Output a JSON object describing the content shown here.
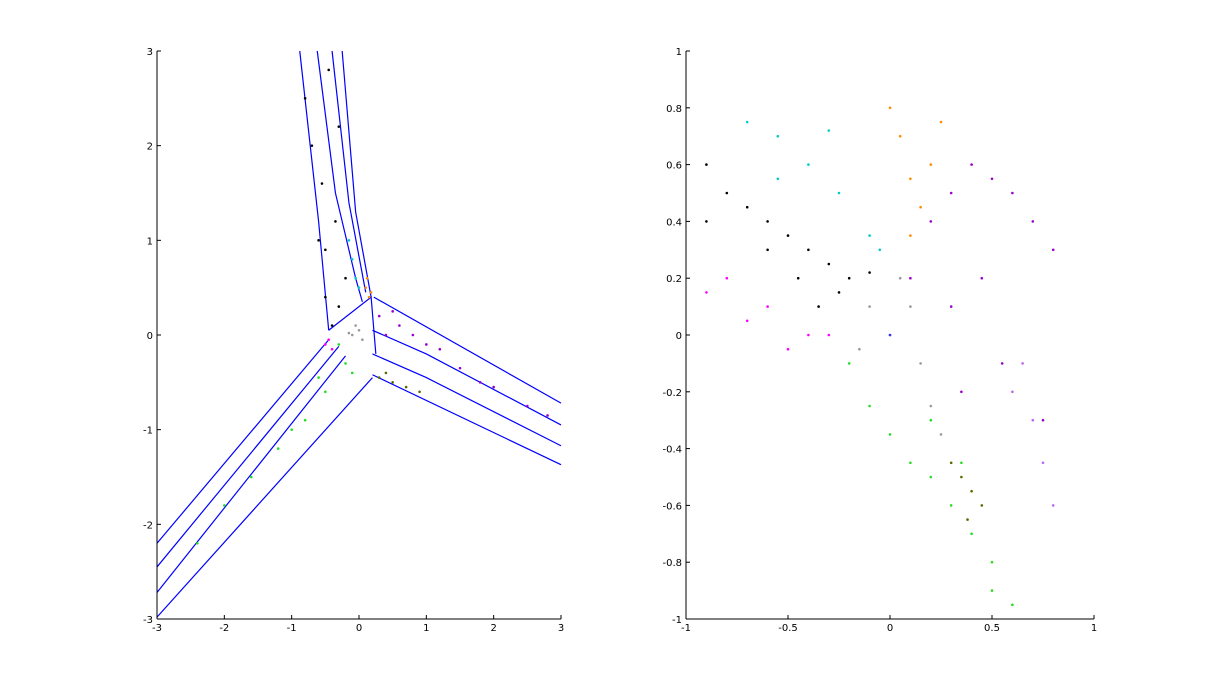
{
  "chart_data": [
    {
      "type": "scatter",
      "xlim": [
        -3,
        3
      ],
      "ylim": [
        -3,
        3
      ],
      "xticks": [
        -3,
        -2,
        -1,
        0,
        1,
        2,
        3
      ],
      "yticks": [
        -3,
        -2,
        -1,
        0,
        1,
        2,
        3
      ],
      "series": [
        {
          "style": "line",
          "color": "#0000ff",
          "x": [
            -0.88,
            -0.6,
            -0.45
          ],
          "y": [
            3,
            1.2,
            0.05
          ]
        },
        {
          "style": "line",
          "color": "#0000ff",
          "x": [
            -0.62,
            -0.35,
            -0.05,
            0.05
          ],
          "y": [
            3,
            1.5,
            0.6,
            0.35
          ]
        },
        {
          "style": "line",
          "color": "#0000ff",
          "x": [
            -0.4,
            -0.15,
            0.1
          ],
          "y": [
            3,
            1.4,
            0.45
          ]
        },
        {
          "style": "line",
          "color": "#0000ff",
          "x": [
            -0.25,
            -0.05,
            0.18
          ],
          "y": [
            3,
            1.3,
            0.4
          ]
        },
        {
          "style": "line",
          "color": "#0000ff",
          "x": [
            -0.45,
            0.18,
            0.25
          ],
          "y": [
            0.05,
            0.4,
            -0.2
          ]
        },
        {
          "style": "line",
          "color": "#0000ff",
          "x": [
            0.22,
            3
          ],
          "y": [
            0.4,
            -0.72
          ]
        },
        {
          "style": "line",
          "color": "#0000ff",
          "x": [
            0.2,
            1.0,
            3
          ],
          "y": [
            0.05,
            -0.2,
            -0.95
          ]
        },
        {
          "style": "line",
          "color": "#0000ff",
          "x": [
            0.2,
            1.0,
            3
          ],
          "y": [
            -0.2,
            -0.45,
            -1.17
          ]
        },
        {
          "style": "line",
          "color": "#0000ff",
          "x": [
            0.2,
            3
          ],
          "y": [
            -0.42,
            -1.37
          ]
        },
        {
          "style": "line",
          "color": "#0000ff",
          "x": [
            -0.45,
            -3
          ],
          "y": [
            -0.05,
            -2.2
          ]
        },
        {
          "style": "line",
          "color": "#0000ff",
          "x": [
            -0.3,
            -3
          ],
          "y": [
            -0.12,
            -2.45
          ]
        },
        {
          "style": "line",
          "color": "#0000ff",
          "x": [
            -0.2,
            -3
          ],
          "y": [
            -0.22,
            -2.72
          ]
        },
        {
          "style": "line",
          "color": "#0000ff",
          "x": [
            0.2,
            -3
          ],
          "y": [
            -0.45,
            -2.98
          ]
        },
        {
          "style": "dots",
          "color": "#000000",
          "x": [
            -0.4,
            -0.3,
            -0.2,
            -0.5,
            -0.35,
            -0.55,
            -0.7,
            -0.8,
            -0.45,
            -0.3,
            -0.6,
            -0.5
          ],
          "y": [
            0.1,
            0.3,
            0.6,
            0.9,
            1.2,
            1.6,
            2.0,
            2.5,
            2.8,
            2.2,
            1.0,
            0.4
          ]
        },
        {
          "style": "dots",
          "color": "#00cccc",
          "x": [
            -0.1,
            -0.05,
            0.0,
            -0.15
          ],
          "y": [
            0.8,
            0.6,
            0.5,
            1.0
          ]
        },
        {
          "style": "dots",
          "color": "#ff8c00",
          "x": [
            0.1,
            0.15,
            0.12,
            0.18
          ],
          "y": [
            0.5,
            0.4,
            0.6,
            0.45
          ]
        },
        {
          "style": "dots",
          "color": "#9900cc",
          "x": [
            0.3,
            0.6,
            1.0,
            1.5,
            2.0,
            2.5,
            0.8,
            1.2,
            1.8,
            2.8,
            0.4,
            0.5
          ],
          "y": [
            0.2,
            0.1,
            -0.1,
            -0.35,
            -0.55,
            -0.75,
            0.0,
            -0.15,
            -0.5,
            -0.85,
            0.0,
            0.25
          ]
        },
        {
          "style": "dots",
          "color": "#ff00ff",
          "x": [
            -0.5,
            -0.4,
            -0.45
          ],
          "y": [
            -0.1,
            -0.15,
            -0.05
          ]
        },
        {
          "style": "dots",
          "color": "#22dd22",
          "x": [
            -0.2,
            -0.5,
            -0.8,
            -1.2,
            -1.6,
            -2.0,
            -2.4,
            -0.3,
            -0.1,
            -0.6,
            -1.0
          ],
          "y": [
            -0.3,
            -0.6,
            -0.9,
            -1.2,
            -1.5,
            -1.8,
            -2.2,
            -0.1,
            -0.4,
            -0.45,
            -1.0
          ]
        },
        {
          "style": "dots",
          "color": "#556b00",
          "x": [
            0.3,
            0.5,
            0.7,
            0.9,
            0.4
          ],
          "y": [
            -0.45,
            -0.5,
            -0.55,
            -0.6,
            -0.4
          ]
        },
        {
          "style": "dots",
          "color": "#999999",
          "x": [
            0.0,
            -0.1,
            0.05,
            -0.05,
            -0.15
          ],
          "y": [
            0.05,
            0.0,
            -0.05,
            0.1,
            0.02
          ]
        }
      ]
    },
    {
      "type": "scatter",
      "xlim": [
        -1,
        1
      ],
      "ylim": [
        -1,
        1
      ],
      "xticks": [
        -1,
        -0.5,
        0,
        0.5,
        1
      ],
      "yticks": [
        -1,
        -0.8,
        -0.6,
        -0.4,
        -0.2,
        0,
        0.2,
        0.4,
        0.6,
        0.8,
        1
      ],
      "series": [
        {
          "style": "dots",
          "color": "#000000",
          "x": [
            -0.9,
            -0.8,
            -0.7,
            -0.6,
            -0.5,
            -0.4,
            -0.3,
            -0.2,
            -0.1,
            -0.45,
            -0.35,
            -0.25,
            -0.6,
            -0.9
          ],
          "y": [
            0.6,
            0.5,
            0.45,
            0.4,
            0.35,
            0.3,
            0.25,
            0.2,
            0.22,
            0.2,
            0.1,
            0.15,
            0.3,
            0.4
          ]
        },
        {
          "style": "dots",
          "color": "#00cccc",
          "x": [
            -0.7,
            -0.55,
            -0.4,
            -0.25,
            -0.1,
            -0.05,
            -0.3,
            -0.55
          ],
          "y": [
            0.75,
            0.7,
            0.6,
            0.5,
            0.35,
            0.3,
            0.72,
            0.55
          ]
        },
        {
          "style": "dots",
          "color": "#ff8c00",
          "x": [
            0.0,
            0.05,
            0.1,
            0.15,
            0.2,
            0.25,
            0.1
          ],
          "y": [
            0.8,
            0.7,
            0.55,
            0.45,
            0.6,
            0.75,
            0.35
          ]
        },
        {
          "style": "dots",
          "color": "#9900cc",
          "x": [
            0.1,
            0.2,
            0.3,
            0.4,
            0.5,
            0.6,
            0.7,
            0.8,
            0.3,
            0.45,
            0.55,
            0.75,
            0.35
          ],
          "y": [
            0.2,
            0.4,
            0.5,
            0.6,
            0.55,
            0.5,
            0.4,
            0.3,
            0.1,
            0.2,
            -0.1,
            -0.3,
            -0.2
          ]
        },
        {
          "style": "dots",
          "color": "#ff00ff",
          "x": [
            -0.9,
            -0.8,
            -0.7,
            -0.6,
            -0.5,
            -0.4,
            -0.3
          ],
          "y": [
            0.15,
            0.2,
            0.05,
            0.1,
            -0.05,
            0.0,
            0.0
          ]
        },
        {
          "style": "dots",
          "color": "#22dd22",
          "x": [
            -0.2,
            -0.1,
            0.0,
            0.1,
            0.2,
            0.3,
            0.4,
            0.5,
            0.2,
            0.35,
            0.5,
            0.6
          ],
          "y": [
            -0.1,
            -0.25,
            -0.35,
            -0.45,
            -0.5,
            -0.6,
            -0.7,
            -0.8,
            -0.3,
            -0.45,
            -0.9,
            -0.95
          ]
        },
        {
          "style": "dots",
          "color": "#556b00",
          "x": [
            0.3,
            0.35,
            0.4,
            0.45,
            0.38
          ],
          "y": [
            -0.45,
            -0.5,
            -0.55,
            -0.6,
            -0.65
          ]
        },
        {
          "style": "dots",
          "color": "#999999",
          "x": [
            0.0,
            0.1,
            0.15,
            0.05,
            -0.1,
            -0.15,
            0.2,
            0.25
          ],
          "y": [
            0.0,
            0.1,
            -0.1,
            0.2,
            0.1,
            -0.05,
            -0.25,
            -0.35
          ]
        },
        {
          "style": "dots",
          "color": "#bb66ee",
          "x": [
            0.6,
            0.7,
            0.75,
            0.8,
            0.65
          ],
          "y": [
            -0.2,
            -0.3,
            -0.45,
            -0.6,
            -0.1
          ]
        },
        {
          "style": "dots",
          "color": "#3333ff",
          "x": [
            0.0
          ],
          "y": [
            0.0
          ]
        }
      ]
    }
  ]
}
